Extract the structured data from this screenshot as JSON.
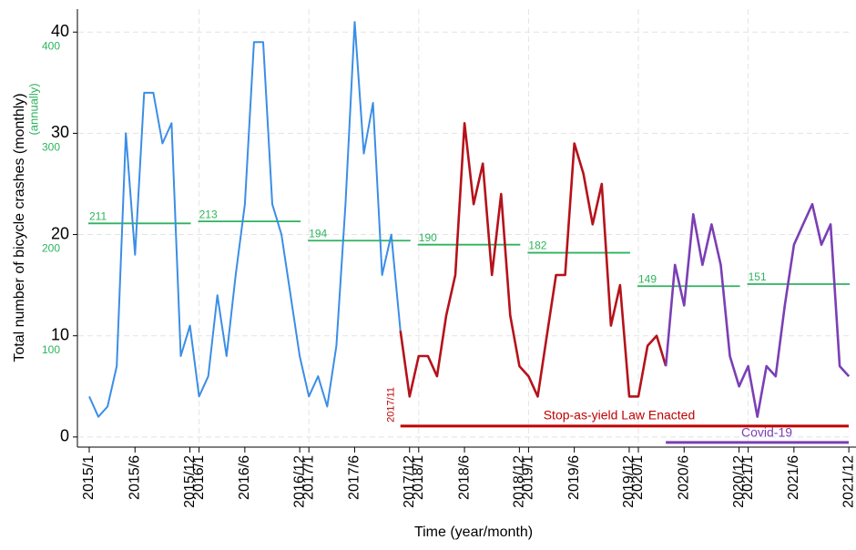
{
  "chart_data": {
    "type": "line",
    "y_label": "Total number of bicycle crashes (monthly)",
    "y2_label": "(annually)",
    "x_label": "Time (year/month)",
    "categories": [
      "2015/1",
      null,
      null,
      null,
      null,
      "2015/6",
      null,
      null,
      null,
      null,
      null,
      "2015/12",
      "2016/1",
      null,
      null,
      null,
      null,
      "2016/6",
      null,
      null,
      null,
      null,
      null,
      "2016/12",
      "2017/1",
      null,
      null,
      null,
      null,
      "2017/6",
      null,
      null,
      null,
      null,
      null,
      "2017/12",
      "2018/1",
      null,
      null,
      null,
      null,
      "2018/6",
      null,
      null,
      null,
      null,
      null,
      "2018/12",
      "2019/1",
      null,
      null,
      null,
      null,
      "2019/6",
      null,
      null,
      null,
      null,
      null,
      "2019/12",
      "2020/1",
      null,
      null,
      null,
      null,
      "2020/6",
      null,
      null,
      null,
      null,
      null,
      "2020/12",
      "2021/1",
      null,
      null,
      null,
      null,
      "2021/6",
      null,
      null,
      null,
      null,
      null,
      "2021/12"
    ],
    "series": [
      {
        "color": "#3a8ee6",
        "values": [
          4,
          2,
          3,
          7,
          30,
          18,
          34,
          34,
          29,
          31,
          8,
          11,
          4,
          6,
          14,
          8,
          16,
          23,
          39,
          39,
          23,
          20,
          14,
          8,
          4,
          6,
          3,
          9,
          23,
          41,
          28,
          33,
          16,
          20,
          10.5,
          null,
          null,
          null,
          null,
          null,
          null,
          null,
          null,
          null,
          null,
          null,
          null,
          null,
          null,
          null,
          null,
          null,
          null,
          null,
          null,
          null,
          null,
          null,
          null,
          null,
          null,
          null,
          null,
          null,
          null,
          null,
          null,
          null,
          null,
          null,
          null,
          null,
          null,
          null,
          null,
          null,
          null,
          null,
          null,
          null,
          null,
          null,
          null,
          null
        ]
      },
      {
        "color": "#b5121b",
        "values": [
          null,
          null,
          null,
          null,
          null,
          null,
          null,
          null,
          null,
          null,
          null,
          null,
          null,
          null,
          null,
          null,
          null,
          null,
          null,
          null,
          null,
          null,
          null,
          null,
          null,
          null,
          null,
          null,
          null,
          null,
          null,
          null,
          null,
          null,
          10.5,
          4,
          8,
          8,
          6,
          12,
          16,
          31,
          23,
          27,
          16,
          24,
          12,
          7,
          6,
          4,
          10,
          16,
          16,
          29,
          26,
          21,
          25,
          11,
          15,
          4,
          4,
          9,
          10,
          7,
          null,
          null,
          null,
          null,
          null,
          null,
          null,
          null,
          null,
          null,
          null,
          null,
          null,
          null,
          null,
          null,
          null,
          null,
          null,
          null
        ]
      },
      {
        "color": "#7a3fb5",
        "values": [
          null,
          null,
          null,
          null,
          null,
          null,
          null,
          null,
          null,
          null,
          null,
          null,
          null,
          null,
          null,
          null,
          null,
          null,
          null,
          null,
          null,
          null,
          null,
          null,
          null,
          null,
          null,
          null,
          null,
          null,
          null,
          null,
          null,
          null,
          null,
          null,
          null,
          null,
          null,
          null,
          null,
          null,
          null,
          null,
          null,
          null,
          null,
          null,
          null,
          null,
          null,
          null,
          null,
          null,
          null,
          null,
          null,
          null,
          null,
          null,
          null,
          null,
          null,
          7,
          17,
          13,
          22,
          17,
          21,
          17,
          8,
          5,
          7,
          2,
          7,
          6,
          13,
          19,
          21,
          23,
          19,
          21,
          7,
          6
        ]
      }
    ],
    "annual": {
      "color": "#2db35d",
      "axis": "y2",
      "values": [
        211,
        213,
        194,
        190,
        182,
        149,
        151
      ]
    },
    "annotations": [
      {
        "text": "Stop-as-yield Law Enacted",
        "date": "2017/11",
        "color": "#c00000"
      },
      {
        "text": "Covid-19",
        "color": "#7a3fb5"
      }
    ],
    "ylim": [
      -1,
      42
    ],
    "yticks": [
      0,
      10,
      20,
      30,
      40
    ],
    "y2lim": [
      -10,
      420
    ],
    "y2ticks": [
      100,
      200,
      300,
      400
    ],
    "grid": true
  }
}
